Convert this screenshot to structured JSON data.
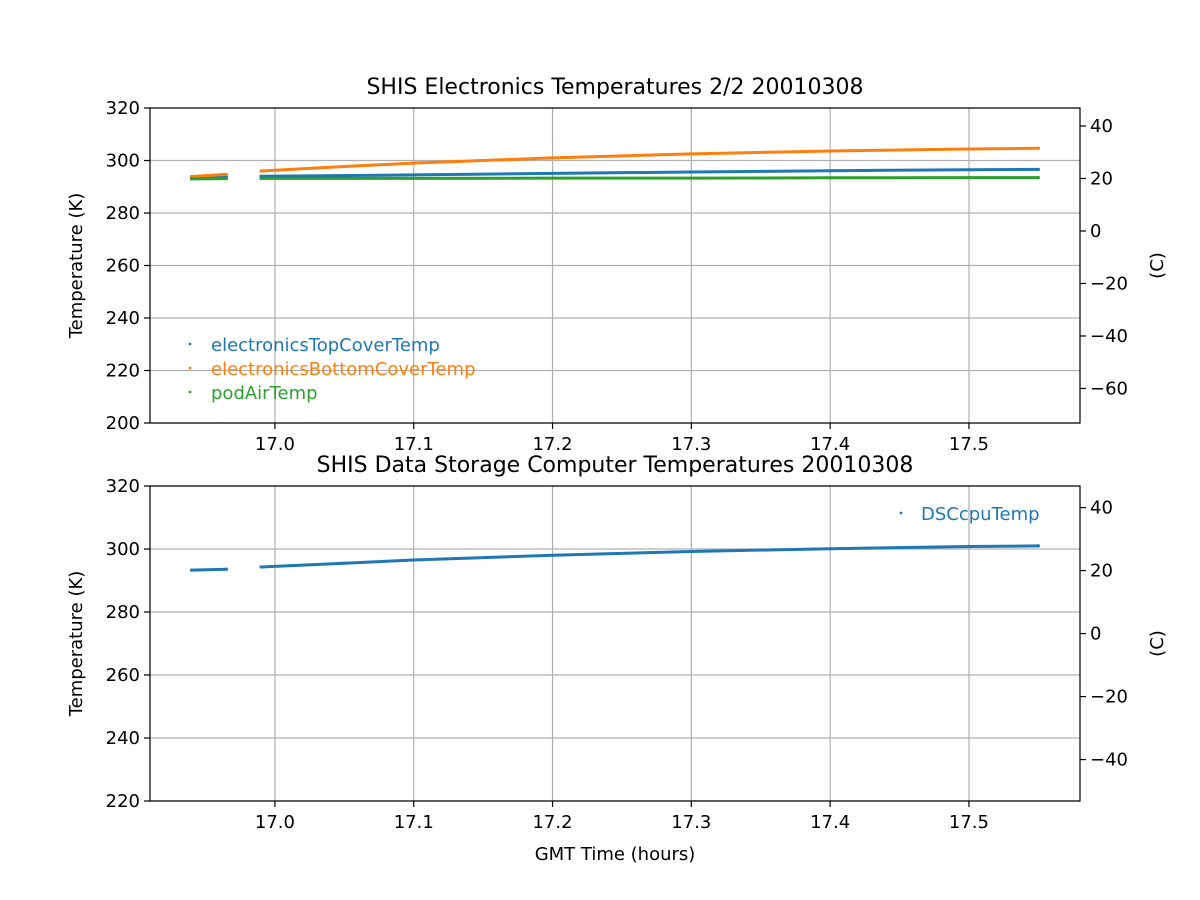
{
  "chart_data": [
    {
      "type": "scatter",
      "title": "SHIS Electronics Temperatures 2/2 20010308",
      "xlabel": "",
      "ylabel": "Temperature (K)",
      "y2label": "(C)",
      "xlim": [
        16.91,
        17.58
      ],
      "ylim": [
        200,
        320
      ],
      "y2lim": [
        -73.15,
        46.85
      ],
      "xticks": [
        "17.0",
        "17.1",
        "17.2",
        "17.3",
        "17.4",
        "17.5"
      ],
      "yticks": [
        "200",
        "220",
        "240",
        "260",
        "280",
        "300",
        "320"
      ],
      "y2ticks": [
        "−60",
        "−40",
        "−20",
        "0",
        "20",
        "40"
      ],
      "grid": true,
      "legend_position": "lower-left",
      "series": [
        {
          "name": "electronicsTopCoverTemp",
          "color": "#1f77b4",
          "points": [
            [
              16.94,
              293.6
            ],
            [
              16.965,
              293.7
            ],
            [
              16.99,
              294.0
            ],
            [
              17.1,
              294.5
            ],
            [
              17.2,
              295.1
            ],
            [
              17.3,
              295.6
            ],
            [
              17.4,
              296.1
            ],
            [
              17.5,
              296.5
            ],
            [
              17.55,
              296.6
            ]
          ]
        },
        {
          "name": "electronicsBottomCoverTemp",
          "color": "#ff7f0e",
          "points": [
            [
              16.94,
              293.9
            ],
            [
              16.965,
              294.7
            ],
            [
              16.99,
              296.0
            ],
            [
              17.05,
              297.7
            ],
            [
              17.1,
              299.0
            ],
            [
              17.2,
              301.0
            ],
            [
              17.3,
              302.5
            ],
            [
              17.4,
              303.6
            ],
            [
              17.5,
              304.4
            ],
            [
              17.55,
              304.7
            ]
          ]
        },
        {
          "name": "podAirTemp",
          "color": "#2ca02c",
          "points": [
            [
              16.94,
              293.0
            ],
            [
              16.965,
              293.1
            ],
            [
              16.99,
              293.2
            ],
            [
              17.1,
              293.2
            ],
            [
              17.2,
              293.3
            ],
            [
              17.3,
              293.3
            ],
            [
              17.4,
              293.4
            ],
            [
              17.5,
              293.5
            ],
            [
              17.55,
              293.5
            ]
          ]
        }
      ]
    },
    {
      "type": "scatter",
      "title": "SHIS Data Storage Computer Temperatures 20010308",
      "xlabel": "GMT Time (hours)",
      "ylabel": "Temperature (K)",
      "y2label": "(C)",
      "xlim": [
        16.91,
        17.58
      ],
      "ylim": [
        220,
        320
      ],
      "y2lim": [
        -53.15,
        46.85
      ],
      "xticks": [
        "17.0",
        "17.1",
        "17.2",
        "17.3",
        "17.4",
        "17.5"
      ],
      "yticks": [
        "220",
        "240",
        "260",
        "280",
        "300",
        "320"
      ],
      "y2ticks": [
        "−40",
        "−20",
        "0",
        "20",
        "40"
      ],
      "grid": true,
      "legend_position": "upper-right",
      "series": [
        {
          "name": "DSCcpuTemp",
          "color": "#1f77b4",
          "points": [
            [
              16.94,
              293.3
            ],
            [
              16.965,
              293.6
            ],
            [
              16.99,
              294.3
            ],
            [
              17.05,
              295.5
            ],
            [
              17.1,
              296.5
            ],
            [
              17.2,
              298.0
            ],
            [
              17.3,
              299.2
            ],
            [
              17.4,
              300.1
            ],
            [
              17.5,
              300.8
            ],
            [
              17.55,
              301.0
            ]
          ]
        }
      ]
    }
  ]
}
